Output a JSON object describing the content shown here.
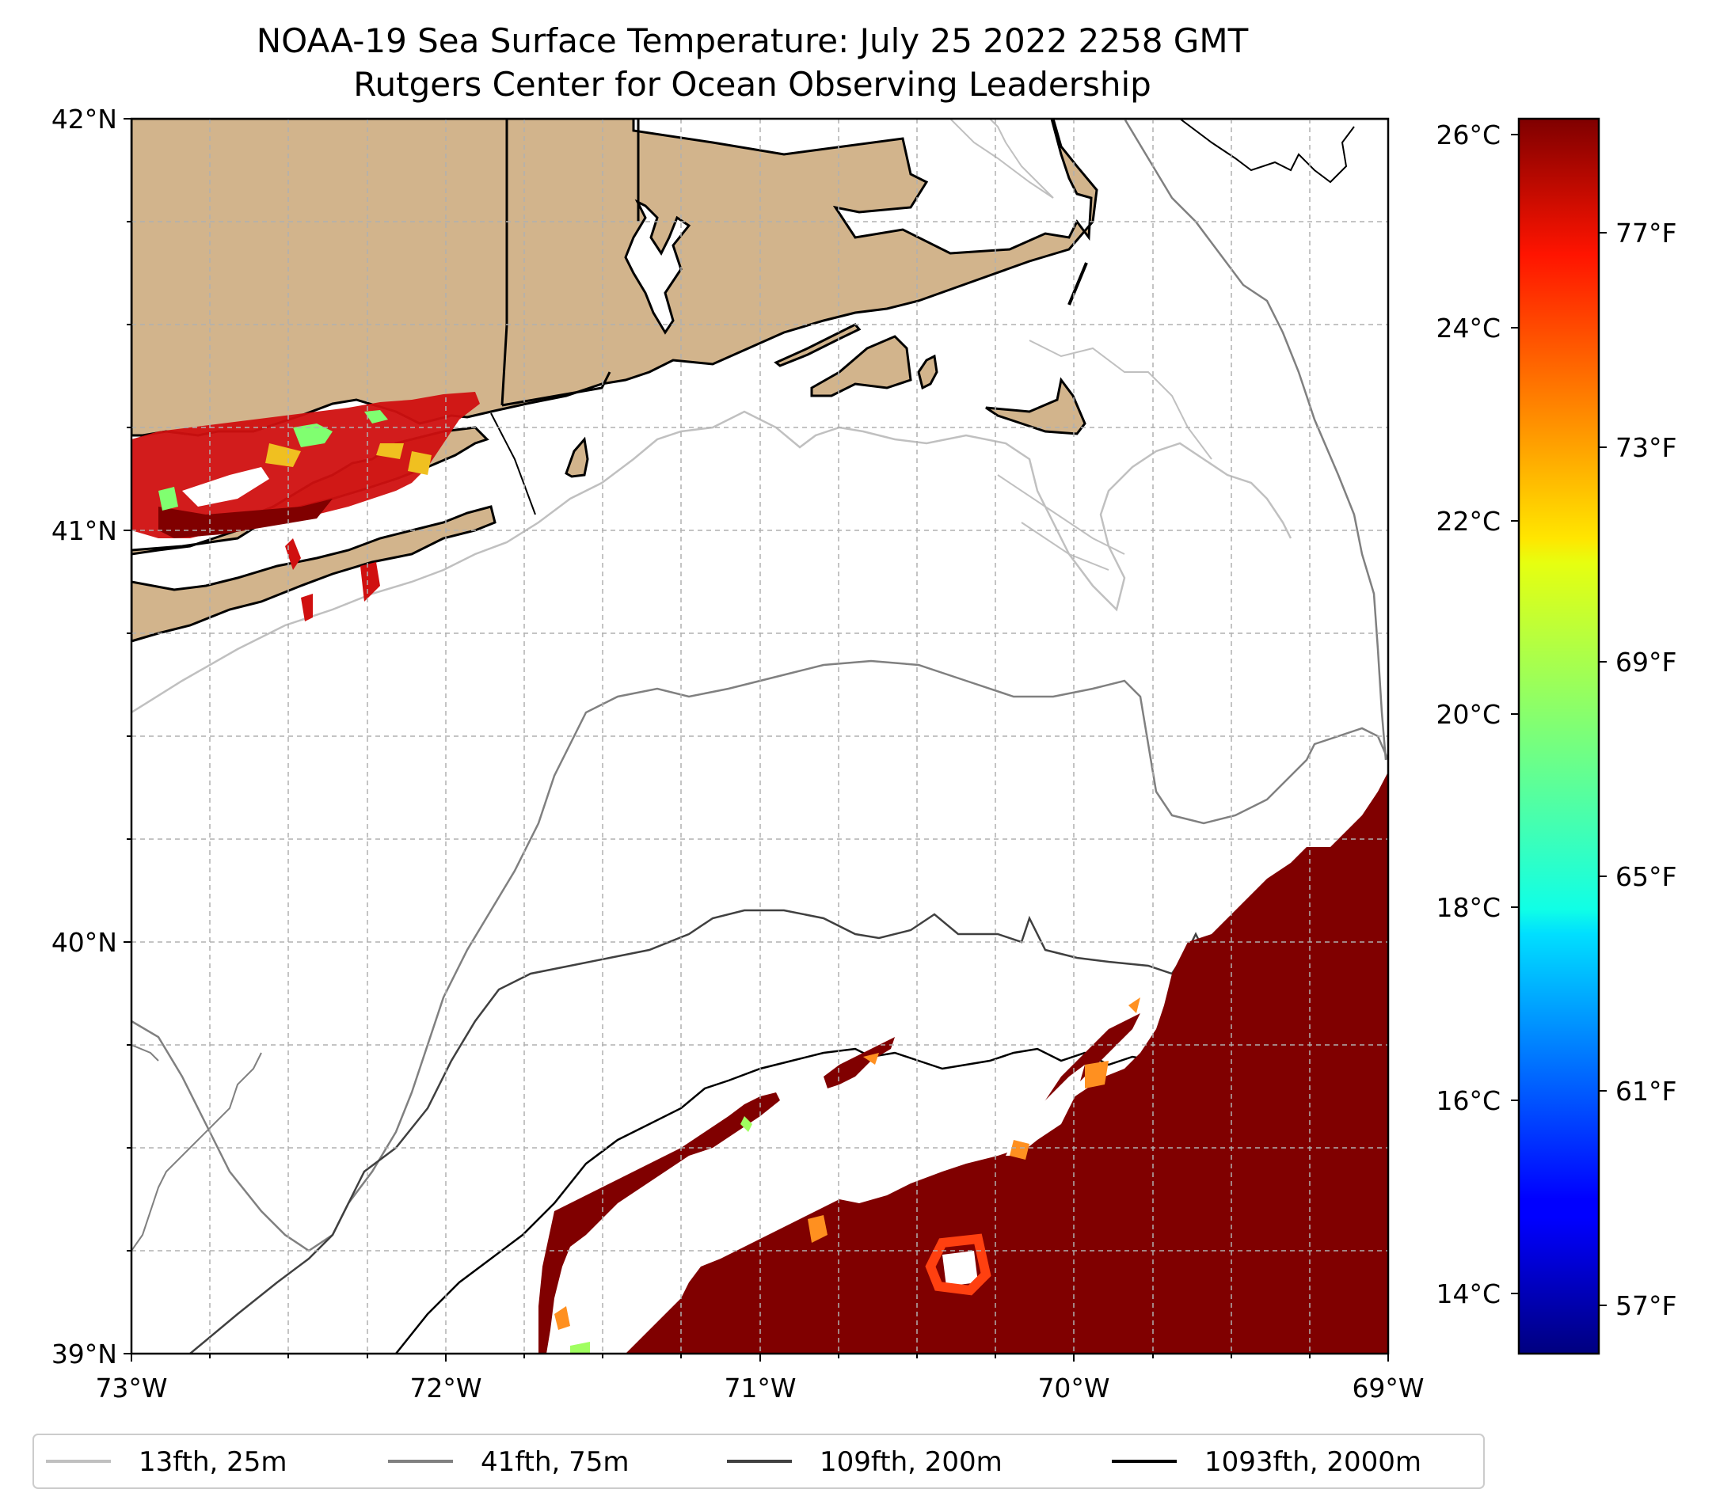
{
  "title": {
    "line1": "NOAA-19 Sea Surface Temperature: July 25 2022 2258 GMT",
    "line2": "Rutgers Center for Ocean Observing Leadership"
  },
  "map": {
    "lat_range": [
      39,
      42
    ],
    "lon_range": [
      -73,
      -69
    ],
    "lat_labels": [
      "42°N",
      "41°N",
      "40°N",
      "39°N"
    ],
    "lon_labels": [
      "73°W",
      "72°W",
      "71°W",
      "70°W",
      "69°W"
    ],
    "land_color": "#D2B48C",
    "grid": "dashed"
  },
  "colorbar": {
    "colormap": "jet",
    "celsius_labels": [
      "26°C",
      "24°C",
      "22°C",
      "20°C",
      "18°C",
      "16°C",
      "14°C"
    ],
    "fahrenheit_labels": [
      "77°F",
      "73°F",
      "69°F",
      "65°F",
      "61°F",
      "57°F"
    ]
  },
  "legend": {
    "entries": [
      {
        "label": "13fth, 25m",
        "color": "#c0c0c0"
      },
      {
        "label": "41fth, 75m",
        "color": "#808080"
      },
      {
        "label": "109fth, 200m",
        "color": "#404040"
      },
      {
        "label": "1093fth, 2000m",
        "color": "#000000"
      }
    ]
  },
  "colors": {
    "sst_hot": "#800000",
    "sst_red": "#e01010",
    "sst_orange": "#ff8000",
    "sst_yellow": "#f0f020",
    "sst_green": "#80ff70"
  }
}
